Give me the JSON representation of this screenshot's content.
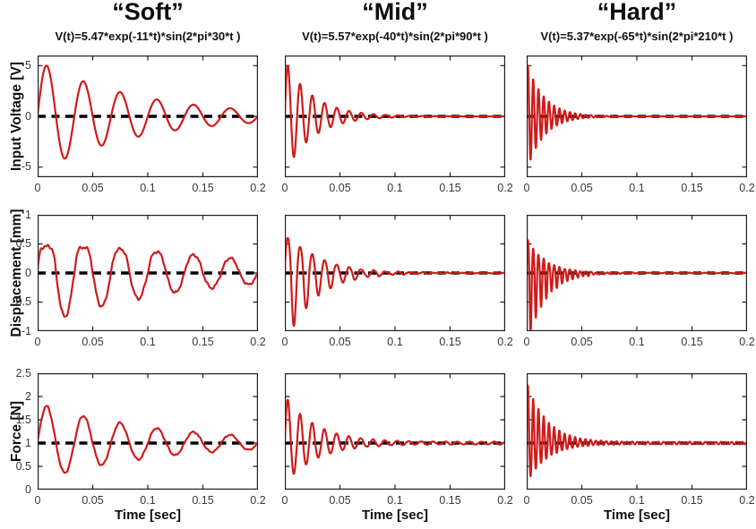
{
  "figure": {
    "background": "#ffffff",
    "line_color": "#cf1b1b",
    "baseline_color": "#000000",
    "axis_color": "#1f1f1f",
    "columns": [
      {
        "title": "“Soft”",
        "formula": "V(t)=5.47*exp(-11*t)*sin(2*pi*30*t )"
      },
      {
        "title": "“Mid”",
        "formula": "V(t)=5.57*exp(-40*t)*sin(2*pi*90*t )"
      },
      {
        "title": "“Hard”",
        "formula": "V(t)=5.37*exp(-65*t)*sin(2*pi*210*t )"
      }
    ],
    "rows": [
      {
        "ylabel": "Input Voltage [V]",
        "ylim": [
          -6,
          6
        ],
        "yticks": [
          -5,
          0,
          5
        ],
        "ytick_labels": [
          "-5",
          "0",
          "5"
        ],
        "baseline": 0
      },
      {
        "ylabel": "Displacement [mm]",
        "ylim": [
          -1,
          1
        ],
        "yticks": [
          -1,
          -0.5,
          0,
          0.5,
          1
        ],
        "ytick_labels": [
          "-1",
          "-0.5",
          "0",
          "0.5",
          "1"
        ],
        "baseline": 0
      },
      {
        "ylabel": "Force [N]",
        "ylim": [
          0,
          2.5
        ],
        "yticks": [
          0,
          0.5,
          1,
          1.5,
          2,
          2.5
        ],
        "ytick_labels": [
          "0",
          "0.5",
          "1",
          "1.5",
          "2",
          "2.5"
        ],
        "baseline": 1
      }
    ],
    "xlabel": "Time [sec]",
    "xlim": [
      0,
      0.2
    ],
    "xticks": [
      0,
      0.05,
      0.1,
      0.15,
      0.2
    ],
    "xtick_labels": [
      "0",
      "0.05",
      "0.1",
      "0.15",
      "0.2"
    ]
  },
  "chart_data": [
    {
      "name": "soft-input-voltage",
      "row": 0,
      "col": 0,
      "type": "line",
      "x_range": [
        0,
        0.2
      ],
      "ylim": [
        -6,
        6
      ],
      "baseline": 0,
      "model": "y(t)=baseline + exp(-decay*t)*sin(2*pi*freq_hz*t) scaled by amp_pos/amp_neg",
      "signal": {
        "amp_pos": 5.47,
        "amp_neg": 5.47,
        "decay": 11,
        "freq_hz": 30,
        "baseline": 0,
        "flatten": 0,
        "noise": 0,
        "ripple": 0
      }
    },
    {
      "name": "mid-input-voltage",
      "row": 0,
      "col": 1,
      "type": "line",
      "x_range": [
        0,
        0.2
      ],
      "ylim": [
        -6,
        6
      ],
      "baseline": 0,
      "model": "y(t)=baseline + exp(-decay*t)*sin(2*pi*freq_hz*t) scaled by amp_pos/amp_neg",
      "signal": {
        "amp_pos": 5.57,
        "amp_neg": 5.57,
        "decay": 40,
        "freq_hz": 90,
        "baseline": 0,
        "flatten": 0,
        "noise": 0,
        "ripple": 0
      }
    },
    {
      "name": "hard-input-voltage",
      "row": 0,
      "col": 2,
      "type": "line",
      "x_range": [
        0,
        0.2
      ],
      "ylim": [
        -6,
        6
      ],
      "baseline": 0,
      "model": "y(t)=baseline + exp(-decay*t)*sin(2*pi*freq_hz*t) scaled by amp_pos/amp_neg",
      "signal": {
        "amp_pos": 5.37,
        "amp_neg": 5.37,
        "decay": 65,
        "freq_hz": 210,
        "baseline": 0,
        "flatten": 0,
        "noise": 0,
        "ripple": 0
      }
    },
    {
      "name": "soft-displacement",
      "row": 1,
      "col": 0,
      "type": "line",
      "x_range": [
        0,
        0.2
      ],
      "ylim": [
        -1,
        1
      ],
      "baseline": 0,
      "model": "damped sine, positive lobes soft-clipped near +0.45, negative lobes to -0.9",
      "signal": {
        "amp_pos": 0.46,
        "amp_neg": 0.92,
        "decay": 8,
        "freq_hz": 30,
        "baseline": 0,
        "flatten": 2.5,
        "noise": 0.02,
        "ripple": 0
      }
    },
    {
      "name": "mid-displacement",
      "row": 1,
      "col": 1,
      "type": "line",
      "x_range": [
        0,
        0.2
      ],
      "ylim": [
        -1,
        1
      ],
      "baseline": 0,
      "model": "asymmetric damped sine, peaks ~+0.55, troughs ~-0.9",
      "signal": {
        "amp_pos": 0.62,
        "amp_neg": 1.25,
        "decay": 38,
        "freq_hz": 90,
        "baseline": 0,
        "flatten": 1.2,
        "noise": 0.015,
        "ripple": 0
      }
    },
    {
      "name": "hard-displacement",
      "row": 1,
      "col": 2,
      "type": "line",
      "x_range": [
        0,
        0.2
      ],
      "ylim": [
        -1,
        1
      ],
      "baseline": 0,
      "model": "asymmetric damped sine, peaks ~+0.55, troughs ~-1.0",
      "signal": {
        "amp_pos": 0.6,
        "amp_neg": 1.27,
        "decay": 60,
        "freq_hz": 210,
        "baseline": 0,
        "flatten": 0,
        "noise": 0.012,
        "ripple": 0
      }
    },
    {
      "name": "soft-force",
      "row": 2,
      "col": 0,
      "type": "line",
      "x_range": [
        0,
        0.2
      ],
      "ylim": [
        0,
        2.5
      ],
      "baseline": 1,
      "model": "damped sine about 1 N, first peak ~1.8, first trough ~0.35",
      "signal": {
        "amp_pos": 0.85,
        "amp_neg": 0.8,
        "decay": 9,
        "freq_hz": 30,
        "baseline": 1,
        "flatten": 0,
        "noise": 0.015,
        "ripple": 0
      }
    },
    {
      "name": "mid-force",
      "row": 2,
      "col": 1,
      "type": "line",
      "x_range": [
        0,
        0.2
      ],
      "ylim": [
        0,
        2.5
      ],
      "baseline": 1,
      "model": "damped sine about 1 N, first peak ~1.9, first trough ~0.35, small residual ripple",
      "signal": {
        "amp_pos": 1.0,
        "amp_neg": 0.87,
        "decay": 35,
        "freq_hz": 90,
        "baseline": 1,
        "flatten": 0,
        "noise": 0.008,
        "ripple": 0.028
      }
    },
    {
      "name": "hard-force",
      "row": 2,
      "col": 2,
      "type": "line",
      "x_range": [
        0,
        0.2
      ],
      "ylim": [
        0,
        2.5
      ],
      "baseline": 1,
      "model": "damped sine about 1 N, first peak ~2.2, first trough ~0.2, small residual ripple",
      "signal": {
        "amp_pos": 1.3,
        "amp_neg": 0.85,
        "decay": 55,
        "freq_hz": 210,
        "baseline": 1,
        "flatten": 0,
        "noise": 0.008,
        "ripple": 0.025
      }
    }
  ]
}
